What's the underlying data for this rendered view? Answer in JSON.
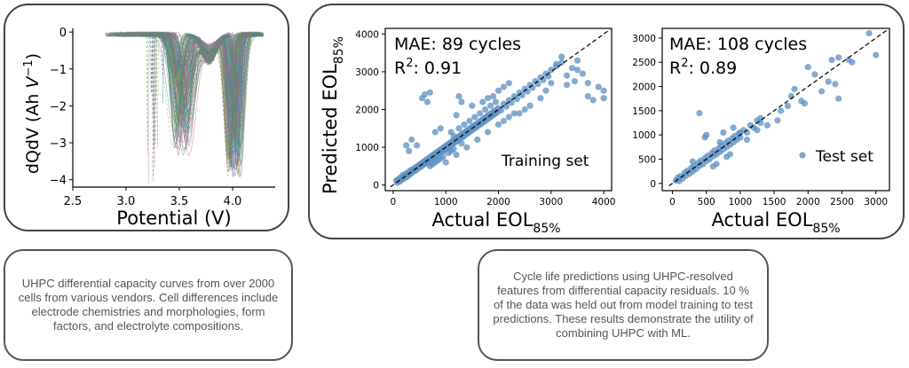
{
  "captions": {
    "left": "UHPC differential capacity curves from over 2000 cells from various vendors. Cell differences include electrode chemistries and morphologies, form factors, and electrolyte compositions.",
    "right": "Cycle life predictions using UHPC-resolved features from differential capacity residuals. 10 % of the data was held out from model training to test predictions. These results demonstrate the utility of combining UHPC with ML."
  },
  "chart_data": [
    {
      "type": "line",
      "xlabel": "Potential (V)",
      "ylabel_main": "dQdV (Ah ",
      "ylabel_var": "V",
      "ylabel_exp": "−1",
      "ylabel_close": ")",
      "xlim": [
        2.5,
        4.4
      ],
      "ylim": [
        -4.2,
        0.1
      ],
      "xticks": [
        "2.5",
        "3.0",
        "3.5",
        "4.0"
      ],
      "yticks": [
        "0",
        "−1",
        "−2",
        "−3",
        "−4"
      ],
      "colors": [
        "#7a7a7a",
        "#2f8f6f",
        "#4a78b8",
        "#a06cb0",
        "#5aa02c",
        "#c85a4a",
        "#888888",
        "#3a9a9a"
      ],
      "series_shape": {
        "start_x": [
          2.8,
          3.25
        ],
        "base_level": [
          -0.02,
          -0.1
        ],
        "peak1": {
          "x": [
            3.45,
            3.6
          ],
          "depth": [
            -0.7,
            -3.3
          ]
        },
        "peak2": {
          "x": [
            3.95,
            4.08
          ],
          "depth": [
            -1.5,
            -3.9
          ]
        },
        "end_x": [
          4.15,
          4.3
        ]
      }
    },
    {
      "type": "scatter",
      "annotation_mae": "MAE: 89 cycles",
      "annotation_r2_prefix": "R",
      "annotation_r2_exp": "2",
      "annotation_r2_value": ": 0.91",
      "annotation_set": "Training set",
      "xlabel_main": "Actual EOL",
      "xlabel_sub": "85%",
      "ylabel_main": "Predicted EOL",
      "ylabel_sub": "85%",
      "xlim": [
        -150,
        4150
      ],
      "ylim": [
        -150,
        4150
      ],
      "xticks": [
        0,
        1000,
        2000,
        3000,
        4000
      ],
      "yticks": [
        0,
        1000,
        2000,
        3000,
        4000
      ],
      "point_color": "#5b8fc2",
      "points": [
        [
          60,
          120
        ],
        [
          80,
          60
        ],
        [
          100,
          150
        ],
        [
          120,
          90
        ],
        [
          140,
          200
        ],
        [
          160,
          130
        ],
        [
          180,
          260
        ],
        [
          200,
          170
        ],
        [
          220,
          240
        ],
        [
          240,
          300
        ],
        [
          260,
          210
        ],
        [
          280,
          330
        ],
        [
          300,
          260
        ],
        [
          320,
          380
        ],
        [
          340,
          300
        ],
        [
          360,
          410
        ],
        [
          380,
          350
        ],
        [
          400,
          440
        ],
        [
          420,
          380
        ],
        [
          440,
          480
        ],
        [
          460,
          420
        ],
        [
          480,
          520
        ],
        [
          500,
          460
        ],
        [
          520,
          560
        ],
        [
          540,
          490
        ],
        [
          560,
          600
        ],
        [
          580,
          540
        ],
        [
          600,
          640
        ],
        [
          620,
          570
        ],
        [
          640,
          680
        ],
        [
          660,
          610
        ],
        [
          680,
          720
        ],
        [
          700,
          650
        ],
        [
          720,
          760
        ],
        [
          740,
          690
        ],
        [
          760,
          800
        ],
        [
          780,
          730
        ],
        [
          800,
          840
        ],
        [
          820,
          770
        ],
        [
          840,
          880
        ],
        [
          860,
          810
        ],
        [
          880,
          920
        ],
        [
          900,
          850
        ],
        [
          920,
          960
        ],
        [
          940,
          890
        ],
        [
          960,
          1000
        ],
        [
          980,
          930
        ],
        [
          1000,
          1040
        ],
        [
          1020,
          970
        ],
        [
          1040,
          1080
        ],
        [
          1060,
          1010
        ],
        [
          1080,
          1120
        ],
        [
          1100,
          1050
        ],
        [
          1120,
          1160
        ],
        [
          1140,
          1090
        ],
        [
          1160,
          1200
        ],
        [
          1180,
          1130
        ],
        [
          1200,
          1240
        ],
        [
          1220,
          1170
        ],
        [
          1240,
          1280
        ],
        [
          1260,
          1210
        ],
        [
          1280,
          1320
        ],
        [
          1300,
          1250
        ],
        [
          1320,
          1360
        ],
        [
          1340,
          1290
        ],
        [
          1360,
          1400
        ],
        [
          1380,
          1330
        ],
        [
          1400,
          1440
        ],
        [
          1420,
          1370
        ],
        [
          1440,
          1480
        ],
        [
          1460,
          1410
        ],
        [
          1480,
          1520
        ],
        [
          1500,
          1450
        ],
        [
          1520,
          1560
        ],
        [
          1540,
          1490
        ],
        [
          1560,
          1600
        ],
        [
          1580,
          1530
        ],
        [
          1600,
          1640
        ],
        [
          1620,
          1570
        ],
        [
          1640,
          1680
        ],
        [
          1660,
          1610
        ],
        [
          1680,
          1720
        ],
        [
          1700,
          1650
        ],
        [
          1720,
          1760
        ],
        [
          1740,
          1690
        ],
        [
          1760,
          1800
        ],
        [
          1780,
          1730
        ],
        [
          1800,
          1840
        ],
        [
          1820,
          1770
        ],
        [
          1840,
          1880
        ],
        [
          1860,
          1810
        ],
        [
          1880,
          1920
        ],
        [
          1900,
          1850
        ],
        [
          1920,
          1960
        ],
        [
          1940,
          1890
        ],
        [
          1960,
          1990
        ],
        [
          1980,
          1930
        ],
        [
          2000,
          2040
        ],
        [
          2050,
          1980
        ],
        [
          2100,
          2150
        ],
        [
          2150,
          2080
        ],
        [
          2200,
          2250
        ],
        [
          2250,
          2180
        ],
        [
          2300,
          2350
        ],
        [
          2350,
          2280
        ],
        [
          2400,
          2450
        ],
        [
          2450,
          2380
        ],
        [
          2500,
          2550
        ],
        [
          2550,
          2480
        ],
        [
          2600,
          2650
        ],
        [
          2650,
          2580
        ],
        [
          2700,
          2750
        ],
        [
          2750,
          2680
        ],
        [
          2800,
          2850
        ],
        [
          2850,
          2780
        ],
        [
          2900,
          2950
        ],
        [
          2950,
          2880
        ],
        [
          3000,
          3050
        ],
        [
          3100,
          3150
        ],
        [
          3200,
          3250
        ],
        [
          300,
          900
        ],
        [
          450,
          1050
        ],
        [
          350,
          1200
        ],
        [
          250,
          1050
        ],
        [
          600,
          2400
        ],
        [
          650,
          2200
        ],
        [
          700,
          2450
        ],
        [
          550,
          2300
        ],
        [
          1250,
          2350
        ],
        [
          1300,
          2200
        ],
        [
          1200,
          1850
        ],
        [
          900,
          1500
        ],
        [
          800,
          1400
        ],
        [
          1500,
          2100
        ],
        [
          1700,
          2200
        ],
        [
          1800,
          2300
        ],
        [
          1900,
          2350
        ],
        [
          2000,
          2500
        ],
        [
          2100,
          2600
        ],
        [
          2200,
          2700
        ],
        [
          1000,
          600
        ],
        [
          1200,
          800
        ],
        [
          1400,
          1000
        ],
        [
          1600,
          1200
        ],
        [
          1800,
          1400
        ],
        [
          2000,
          1600
        ],
        [
          2200,
          1800
        ],
        [
          2400,
          1900
        ],
        [
          2600,
          2100
        ],
        [
          2800,
          2300
        ],
        [
          2900,
          2500
        ],
        [
          3000,
          2700
        ],
        [
          2500,
          2000
        ],
        [
          2300,
          1900
        ],
        [
          2100,
          1700
        ],
        [
          3300,
          2900
        ],
        [
          3400,
          3100
        ],
        [
          3500,
          3050
        ],
        [
          3600,
          2950
        ],
        [
          3700,
          2700
        ],
        [
          3800,
          2250
        ],
        [
          3700,
          2350
        ],
        [
          3100,
          3200
        ],
        [
          3200,
          3400
        ],
        [
          3500,
          3300
        ],
        [
          4000,
          2500
        ],
        [
          4000,
          2300
        ],
        [
          3900,
          2600
        ],
        [
          3300,
          2650
        ],
        [
          3450,
          2750
        ],
        [
          1100,
          1400
        ],
        [
          1150,
          1300
        ],
        [
          1250,
          1500
        ],
        [
          1350,
          1600
        ],
        [
          1450,
          1700
        ],
        [
          1550,
          1800
        ],
        [
          1650,
          1900
        ],
        [
          1750,
          2000
        ],
        [
          1850,
          2100
        ],
        [
          1950,
          2200
        ],
        [
          700,
          500
        ],
        [
          750,
          550
        ],
        [
          800,
          600
        ],
        [
          850,
          650
        ],
        [
          900,
          700
        ],
        [
          950,
          750
        ],
        [
          1050,
          850
        ],
        [
          1100,
          900
        ],
        [
          1150,
          950
        ],
        [
          1300,
          1100
        ]
      ]
    },
    {
      "type": "scatter",
      "annotation_mae": "MAE: 108 cycles",
      "annotation_r2_prefix": "R",
      "annotation_r2_exp": "2",
      "annotation_r2_value": ": 0.89",
      "annotation_set": "Test set",
      "xlabel_main": "Actual EOL",
      "xlabel_sub": "85%",
      "xlim": [
        -150,
        3200
      ],
      "ylim": [
        -150,
        3200
      ],
      "xticks": [
        0,
        500,
        1000,
        1500,
        2000,
        2500,
        3000
      ],
      "yticks": [
        0,
        500,
        1000,
        1500,
        2000,
        2500,
        3000
      ],
      "point_color": "#5b8fc2",
      "points": [
        [
          50,
          60
        ],
        [
          80,
          120
        ],
        [
          100,
          50
        ],
        [
          120,
          150
        ],
        [
          150,
          100
        ],
        [
          180,
          220
        ],
        [
          200,
          160
        ],
        [
          220,
          260
        ],
        [
          250,
          200
        ],
        [
          280,
          320
        ],
        [
          300,
          250
        ],
        [
          320,
          360
        ],
        [
          350,
          300
        ],
        [
          380,
          420
        ],
        [
          400,
          360
        ],
        [
          420,
          470
        ],
        [
          450,
          400
        ],
        [
          480,
          520
        ],
        [
          500,
          460
        ],
        [
          520,
          570
        ],
        [
          550,
          500
        ],
        [
          580,
          620
        ],
        [
          600,
          560
        ],
        [
          620,
          680
        ],
        [
          650,
          600
        ],
        [
          680,
          720
        ],
        [
          700,
          650
        ],
        [
          720,
          780
        ],
        [
          750,
          700
        ],
        [
          780,
          830
        ],
        [
          800,
          750
        ],
        [
          820,
          880
        ],
        [
          850,
          800
        ],
        [
          880,
          930
        ],
        [
          900,
          850
        ],
        [
          920,
          980
        ],
        [
          950,
          900
        ],
        [
          980,
          1030
        ],
        [
          1000,
          950
        ],
        [
          1050,
          1100
        ],
        [
          1100,
          1050
        ],
        [
          1150,
          1200
        ],
        [
          1200,
          1150
        ],
        [
          1250,
          1300
        ],
        [
          1300,
          1250
        ],
        [
          400,
          1450
        ],
        [
          480,
          950
        ],
        [
          500,
          1000
        ],
        [
          700,
          850
        ],
        [
          750,
          1050
        ],
        [
          900,
          1150
        ],
        [
          1000,
          1050
        ],
        [
          1100,
          900
        ],
        [
          1250,
          1100
        ],
        [
          1300,
          1350
        ],
        [
          1400,
          1200
        ],
        [
          1550,
          1300
        ],
        [
          1600,
          1500
        ],
        [
          1700,
          1600
        ],
        [
          1750,
          1800
        ],
        [
          1800,
          1950
        ],
        [
          1900,
          1700
        ],
        [
          2000,
          2400
        ],
        [
          2100,
          2250
        ],
        [
          2200,
          1900
        ],
        [
          2300,
          2100
        ],
        [
          2400,
          2050
        ],
        [
          2450,
          1750
        ],
        [
          2450,
          2600
        ],
        [
          2600,
          2550
        ],
        [
          2650,
          2500
        ],
        [
          2900,
          3100
        ],
        [
          3000,
          2650
        ],
        [
          2350,
          2550
        ],
        [
          1950,
          1650
        ],
        [
          600,
          350
        ],
        [
          650,
          400
        ],
        [
          800,
          550
        ],
        [
          850,
          600
        ],
        [
          300,
          450
        ]
      ]
    }
  ]
}
